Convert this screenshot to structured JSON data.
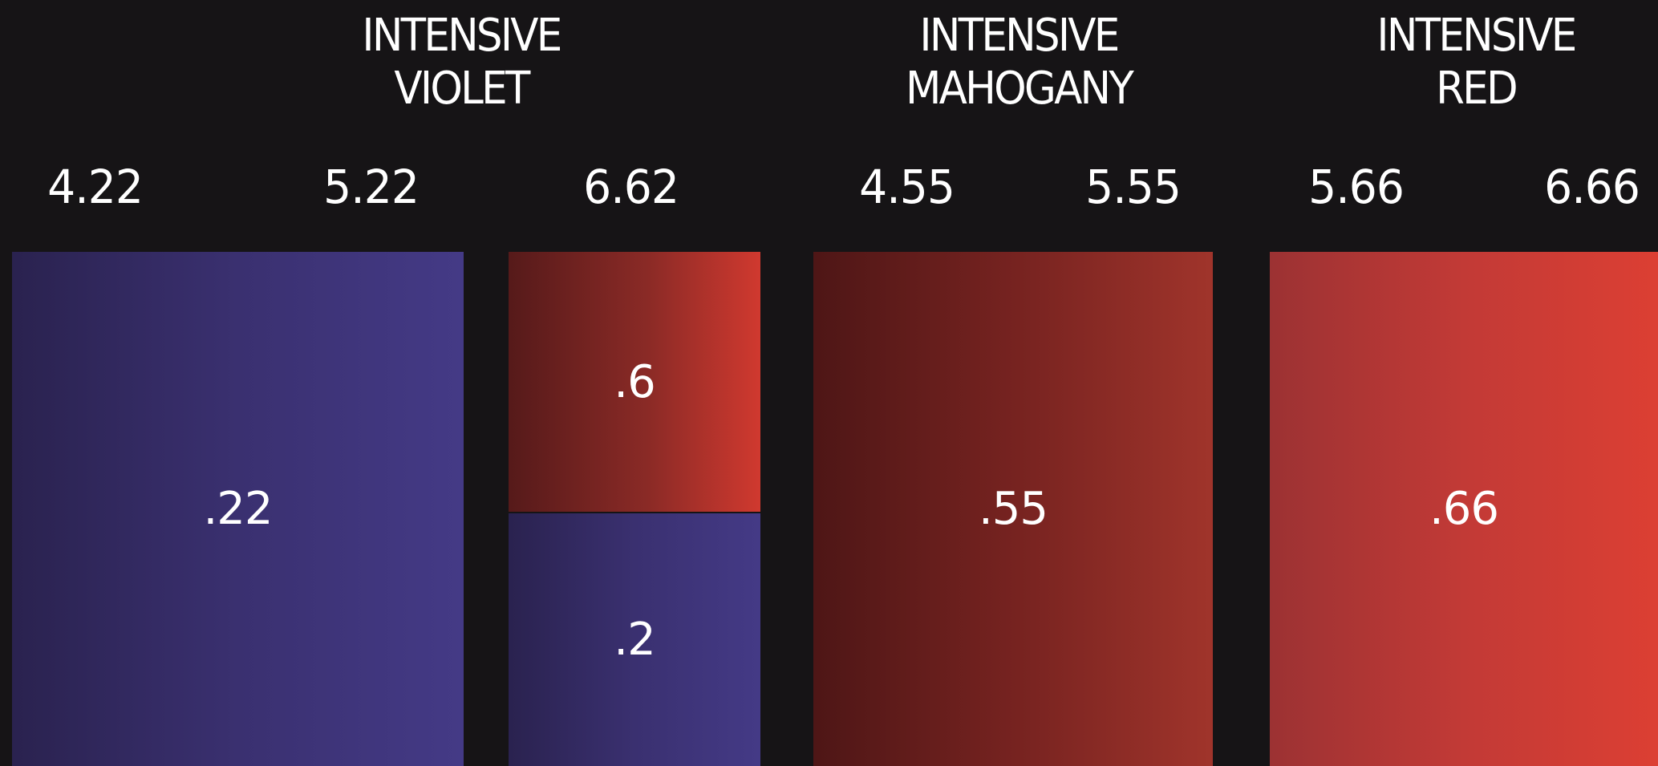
{
  "headings": {
    "violet": [
      "INTENSIVE",
      "VIOLET"
    ],
    "mahogany": [
      "INTENSIVE",
      "MAHOGANY"
    ],
    "red": [
      "INTENSIVE",
      "RED"
    ]
  },
  "shade_numbers": [
    "4.22",
    "5.22",
    "6.62",
    "4.55",
    "5.55",
    "5.66",
    "6.66"
  ],
  "swatches": {
    "violet_big": ".22",
    "red_top": ".6",
    "violet_small": ".2",
    "mahogany": ".55",
    "red": ".66"
  },
  "colors": {
    "background": "#161416",
    "violet": "#3a3070",
    "mahogany": "#7a2421",
    "red": "#c23a36"
  }
}
